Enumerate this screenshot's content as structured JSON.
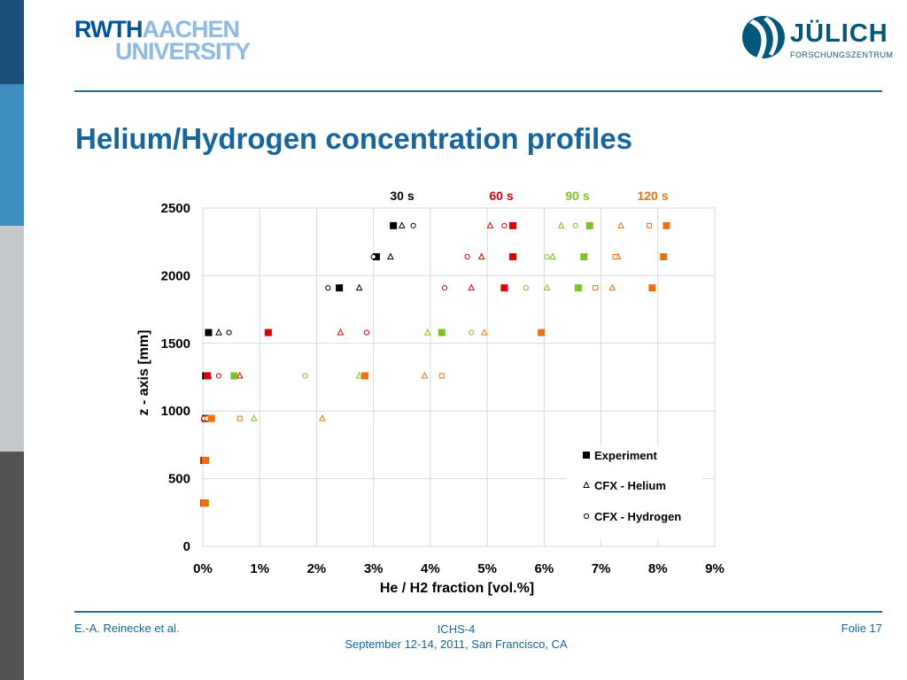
{
  "slide": {
    "title": "Helium/Hydrogen concentration profiles",
    "footer_left": "E.-A. Reinecke et al.",
    "footer_center_line1": "ICHS-4",
    "footer_center_line2": "September 12-14, 2011, San Francisco, CA",
    "footer_right": "Folie 17",
    "accent_color": "#1565a0"
  },
  "logos": {
    "rwth_line1_bold": "RWTH",
    "rwth_line1_light": "AACHEN",
    "rwth_line2": "UNIVERSITY",
    "julich_name": "JÜLICH",
    "julich_sub": "FORSCHUNGSZENTRUM"
  },
  "chart_data": {
    "type": "scatter",
    "xlabel": "He / H2 fraction [vol.%]",
    "ylabel": "z - axis [mm]",
    "xlim": [
      0,
      9
    ],
    "ylim": [
      0,
      2500
    ],
    "xticks": [
      0,
      1,
      2,
      3,
      4,
      5,
      6,
      7,
      8,
      9
    ],
    "xtick_labels": [
      "0%",
      "1%",
      "2%",
      "3%",
      "4%",
      "5%",
      "6%",
      "7%",
      "8%",
      "9%"
    ],
    "yticks": [
      0,
      500,
      1000,
      1500,
      2000,
      2500
    ],
    "grid": true,
    "legend_position": "bottom-right",
    "legend": [
      {
        "label": "Experiment",
        "marker": "square"
      },
      {
        "label": "CFX - Helium",
        "marker": "triangle"
      },
      {
        "label": "CFX - Hydrogen",
        "marker": "circle"
      }
    ],
    "time_labels": [
      {
        "label": "30 s",
        "color": "#000000"
      },
      {
        "label": "60 s",
        "color": "#e00000"
      },
      {
        "label": "90 s",
        "color": "#7dc21e"
      },
      {
        "label": "120 s",
        "color": "#f07010"
      }
    ],
    "series": [
      {
        "time": "30 s",
        "type": "experiment",
        "marker": "square",
        "color": "#000000",
        "points": [
          [
            3.35,
            2370
          ],
          [
            3.05,
            2140
          ],
          [
            2.4,
            1910
          ],
          [
            0.1,
            1580
          ],
          [
            0.05,
            1260
          ],
          [
            0.05,
            945
          ],
          [
            0.02,
            635
          ],
          [
            0.02,
            320
          ]
        ]
      },
      {
        "time": "30 s",
        "type": "cfx-helium",
        "marker": "triangle",
        "color": "#000000",
        "points": [
          [
            3.5,
            2370
          ],
          [
            3.3,
            2140
          ],
          [
            2.75,
            1910
          ],
          [
            0.28,
            1580
          ],
          [
            0.1,
            1260
          ],
          [
            0.08,
            945
          ]
        ]
      },
      {
        "time": "30 s",
        "type": "cfx-hydrogen",
        "marker": "circle",
        "color": "#000000",
        "points": [
          [
            3.7,
            2370
          ],
          [
            3.0,
            2140
          ],
          [
            2.2,
            1910
          ],
          [
            0.46,
            1580
          ],
          [
            0.05,
            1260
          ],
          [
            0.02,
            945
          ]
        ]
      },
      {
        "time": "60 s",
        "type": "experiment",
        "marker": "square",
        "color": "#e00000",
        "points": [
          [
            5.45,
            2370
          ],
          [
            5.45,
            2140
          ],
          [
            5.3,
            1910
          ],
          [
            1.15,
            1580
          ],
          [
            0.08,
            1260
          ],
          [
            0.08,
            945
          ],
          [
            0.02,
            635
          ],
          [
            0.02,
            320
          ]
        ]
      },
      {
        "time": "60 s",
        "type": "cfx-helium",
        "marker": "triangle",
        "color": "#e00000",
        "points": [
          [
            5.05,
            2370
          ],
          [
            4.9,
            2140
          ],
          [
            4.72,
            1910
          ],
          [
            2.42,
            1580
          ],
          [
            0.65,
            1260
          ],
          [
            0.02,
            945
          ]
        ]
      },
      {
        "time": "60 s",
        "type": "cfx-hydrogen",
        "marker": "circle",
        "color": "#e00000",
        "points": [
          [
            5.3,
            2370
          ],
          [
            4.65,
            2140
          ],
          [
            4.25,
            1910
          ],
          [
            2.88,
            1580
          ],
          [
            0.28,
            1260
          ],
          [
            0.02,
            945
          ]
        ]
      },
      {
        "time": "90 s",
        "type": "experiment",
        "marker": "square",
        "color": "#7dc21e",
        "points": [
          [
            6.8,
            2370
          ],
          [
            6.7,
            2140
          ],
          [
            6.6,
            1910
          ],
          [
            4.2,
            1580
          ],
          [
            0.55,
            1260
          ],
          [
            0.15,
            945
          ],
          [
            0.05,
            635
          ],
          [
            0.05,
            320
          ]
        ]
      },
      {
        "time": "90 s",
        "type": "cfx-helium",
        "marker": "triangle",
        "color": "#7dc21e",
        "points": [
          [
            6.3,
            2370
          ],
          [
            6.15,
            2140
          ],
          [
            6.05,
            1910
          ],
          [
            3.95,
            1580
          ],
          [
            2.75,
            1260
          ],
          [
            0.9,
            945
          ]
        ]
      },
      {
        "time": "90 s",
        "type": "cfx-hydrogen",
        "marker": "circle",
        "color": "#7dc21e",
        "points": [
          [
            6.55,
            2370
          ],
          [
            6.05,
            2140
          ],
          [
            5.68,
            1910
          ],
          [
            4.72,
            1580
          ],
          [
            1.8,
            1260
          ],
          [
            0.08,
            945
          ]
        ]
      },
      {
        "time": "120 s",
        "type": "experiment",
        "marker": "square",
        "color": "#f07010",
        "points": [
          [
            8.15,
            2370
          ],
          [
            8.1,
            2140
          ],
          [
            7.9,
            1910
          ],
          [
            5.95,
            1580
          ],
          [
            2.85,
            1260
          ],
          [
            0.15,
            945
          ],
          [
            0.05,
            635
          ],
          [
            0.03,
            320
          ]
        ]
      },
      {
        "time": "120 s",
        "type": "cfx-helium",
        "marker": "triangle",
        "color": "#f07010",
        "points": [
          [
            7.35,
            2370
          ],
          [
            7.3,
            2140
          ],
          [
            7.2,
            1910
          ],
          [
            4.95,
            1580
          ],
          [
            3.9,
            1260
          ],
          [
            2.1,
            945
          ]
        ]
      },
      {
        "time": "120 s",
        "type": "cfx-hydrogen",
        "marker": "square-open",
        "color": "#f07010",
        "points": [
          [
            7.85,
            2370
          ],
          [
            7.25,
            2140
          ],
          [
            6.9,
            1910
          ],
          [
            4.2,
            1260
          ],
          [
            0.65,
            945
          ]
        ]
      }
    ]
  }
}
